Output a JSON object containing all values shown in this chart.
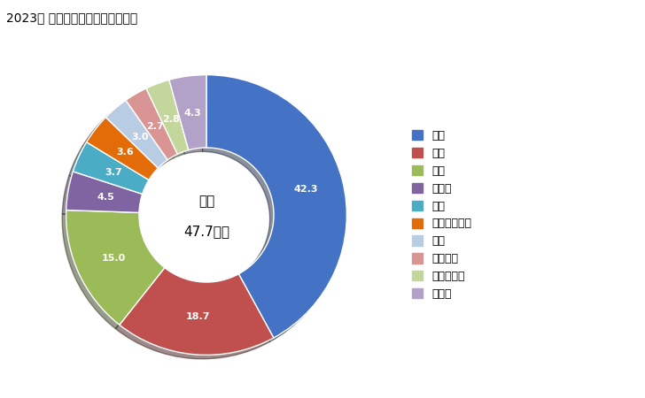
{
  "title": "2023年 輸入相手国のシェア（％）",
  "center_label1": "総額",
  "center_label2": "47.7億円",
  "labels": [
    "中国",
    "米国",
    "韓国",
    "ドイツ",
    "台湾",
    "インドネシア",
    "タイ",
    "フランス",
    "ルーマニア",
    "その他"
  ],
  "values": [
    42.3,
    18.7,
    15.0,
    4.5,
    3.7,
    3.6,
    3.0,
    2.7,
    2.8,
    4.3
  ],
  "colors": [
    "#4472C4",
    "#C0504D",
    "#9BBB59",
    "#8064A2",
    "#4BACC6",
    "#E36C09",
    "#B8CCE4",
    "#D99594",
    "#C3D69B",
    "#B2A2C7"
  ],
  "background_color": "#FFFFFF"
}
